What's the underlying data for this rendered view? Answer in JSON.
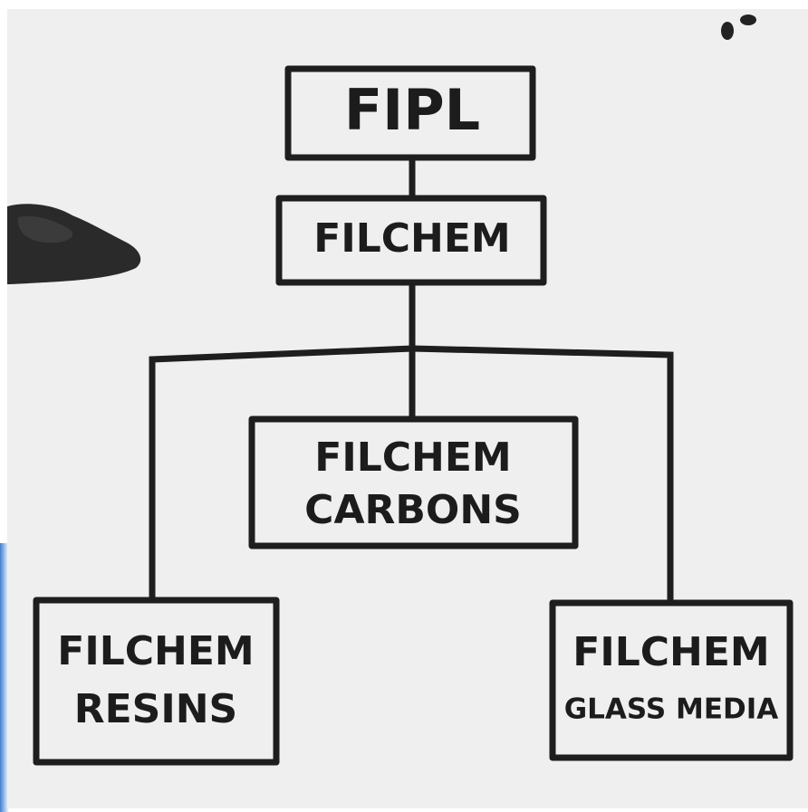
{
  "nodes": [
    {
      "lines": [
        "FIPL"
      ]
    },
    {
      "lines": [
        "FILCHEM"
      ]
    },
    {
      "lines": [
        "FILCHEM",
        "CARBONS"
      ]
    },
    {
      "lines": [
        "FILCHEM",
        "RESINS"
      ]
    },
    {
      "lines": [
        "FILCHEM",
        "GLASS MEDIA"
      ]
    }
  ]
}
